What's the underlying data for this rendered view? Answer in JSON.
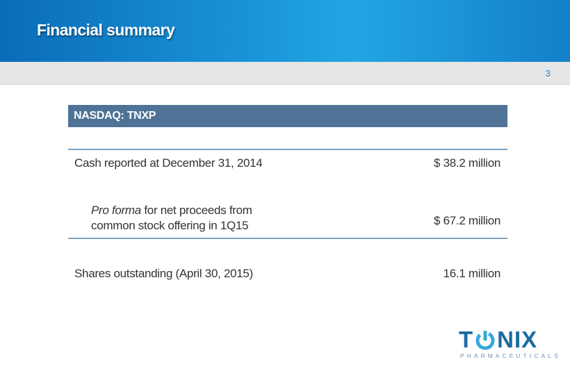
{
  "slide": {
    "title": "Financial summary",
    "page_number": "3"
  },
  "ticker": {
    "label": "NASDAQ: TNXP"
  },
  "rows": [
    {
      "label": "Cash reported at December 31, 2014",
      "value": "$ 38.2 million"
    },
    {
      "label_italic": "Pro forma",
      "label_rest_line1": " for net proceeds from",
      "label_line2": "common stock offering in 1Q15",
      "value": "$ 67.2 million"
    },
    {
      "label": "Shares outstanding (April 30, 2015)",
      "value": "16.1 million"
    }
  ],
  "logo": {
    "letter_t": "T",
    "letters_nix": "NIX",
    "subtitle": "PHARMACEUTICALS",
    "color": "#1b6ba2",
    "accent": "#37a8dc"
  },
  "colors": {
    "header": "#1a95d8",
    "ticker_bar": "#4e7396",
    "rule": "#7ea3c6"
  }
}
